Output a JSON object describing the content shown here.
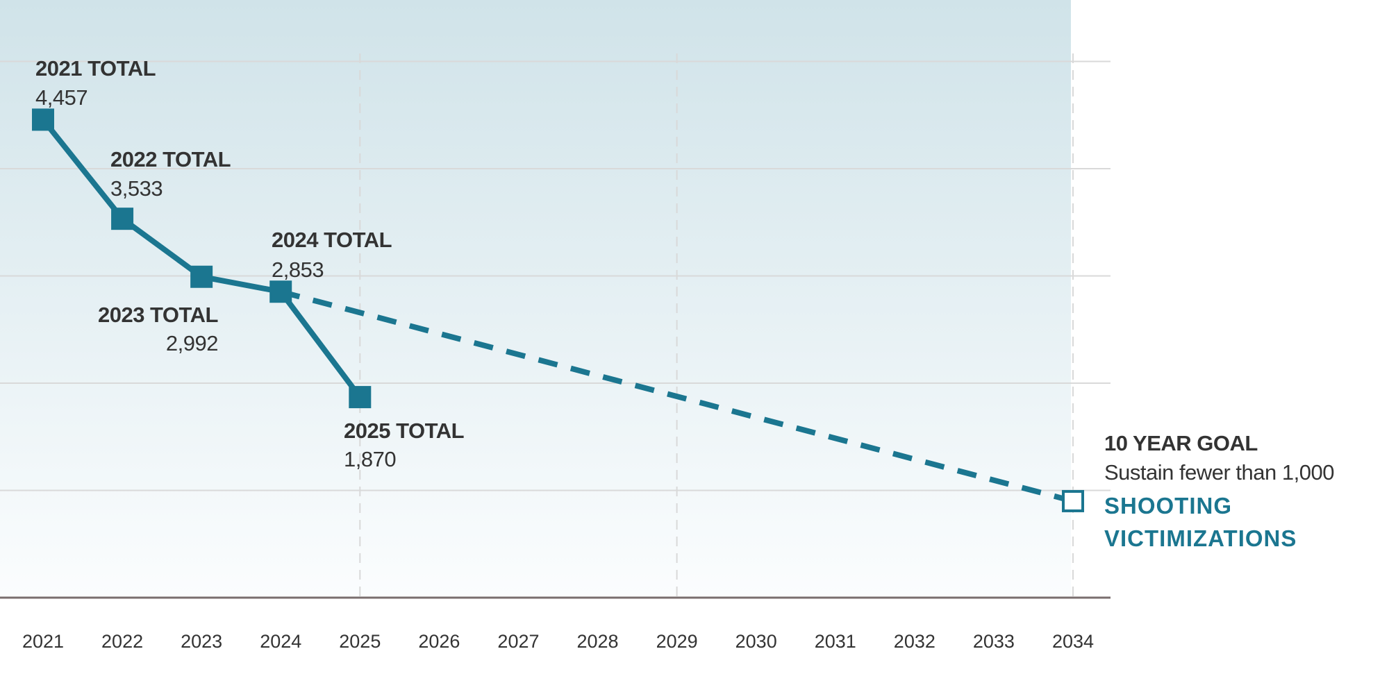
{
  "chart_data": {
    "type": "line",
    "x": [
      2021,
      2022,
      2023,
      2024,
      2025
    ],
    "values": [
      4457,
      3533,
      2992,
      2853,
      1870
    ],
    "point_labels": [
      {
        "year": 2021,
        "title": "2021 TOTAL",
        "value": "4,457"
      },
      {
        "year": 2022,
        "title": "2022 TOTAL",
        "value": "3,533"
      },
      {
        "year": 2023,
        "title": "2023 TOTAL",
        "value": "2,992"
      },
      {
        "year": 2024,
        "title": "2024 TOTAL",
        "value": "2,853"
      },
      {
        "year": 2025,
        "title": "2025 TOTAL",
        "value": "1,870"
      }
    ],
    "projection": {
      "from": [
        2024,
        2853
      ],
      "to": [
        2034,
        900
      ],
      "style": "dashed"
    },
    "goal": {
      "year": 2034,
      "value": 900,
      "title": "10 YEAR GOAL",
      "line1": "Sustain fewer than 1,000",
      "line2": "SHOOTING",
      "line3": "VICTIMIZATIONS"
    },
    "x_ticks": [
      "2021",
      "2022",
      "2023",
      "2024",
      "2025",
      "2026",
      "2027",
      "2028",
      "2029",
      "2030",
      "2031",
      "2032",
      "2033",
      "2034"
    ],
    "y_gridlines": [
      1000,
      2000,
      3000,
      4000,
      5000
    ],
    "ylim": [
      0,
      5500
    ],
    "xlim": [
      2021,
      2034
    ],
    "vertical_reference_years": [
      2025,
      2029,
      2034
    ],
    "grid": true,
    "y_tick_labels_shown": false,
    "colors": {
      "line": "#1b7690",
      "text": "#333333",
      "bg_top": "#d0e3e9",
      "bg_bottom": "#fbfdfe",
      "grid": "#d9d9d9",
      "axis": "#7a6e6e"
    }
  }
}
